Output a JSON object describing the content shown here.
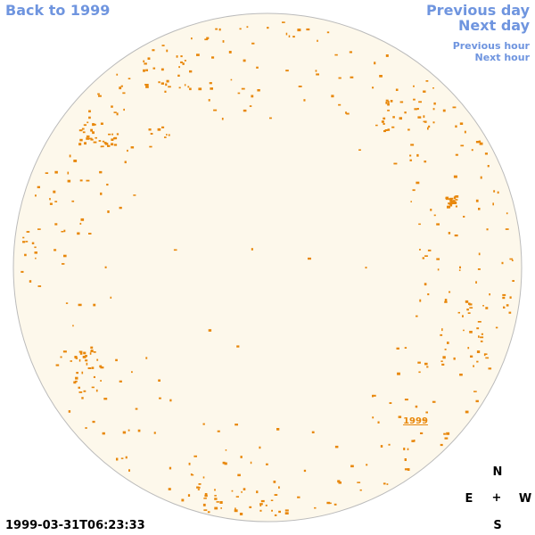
{
  "nav": {
    "back_label": "Back to 1999",
    "prev_day_label": "Previous day",
    "next_day_label": "Next day",
    "prev_hour_label": "Previous hour",
    "next_hour_label": "Next hour"
  },
  "disk": {
    "fill_color": "#fdf8eb",
    "border_color": "#bbbbbb",
    "mark_color": "#e8870a",
    "year_label": "1999"
  },
  "compass": {
    "n": "N",
    "s": "S",
    "e": "E",
    "w": "W",
    "center": "+"
  },
  "timestamp": "1999-03-31T06:23:33",
  "colors": {
    "link": "#6f95df"
  }
}
